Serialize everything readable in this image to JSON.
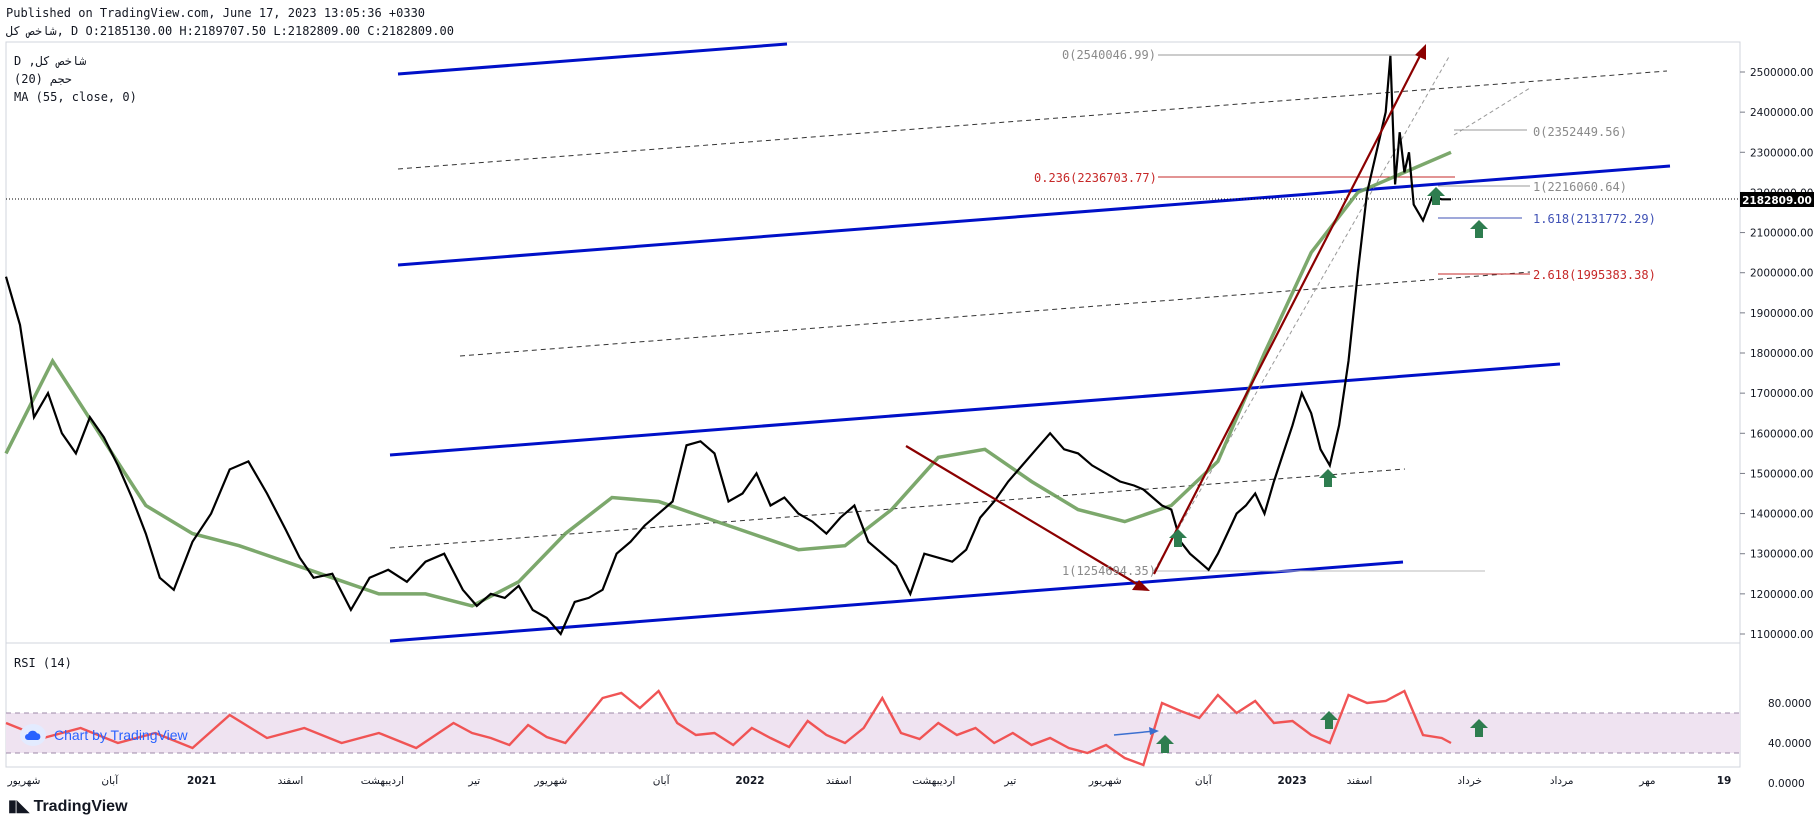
{
  "header": {
    "published": "Published on TradingView.com, June 17, 2023 13:05:36 +0330",
    "ohlc": "شاخص کل, D O:2185130.00 H:2189707.50 L:2182809.00 C:2182809.00"
  },
  "legend": {
    "symbol": "D ,شاخص کل",
    "volume": "(20) حجم",
    "ma": "MA (55, close, 0)"
  },
  "rsi_legend": "RSI (14)",
  "watermark": "Chart by TradingView",
  "footer_logo": "TradingView",
  "last_price": "2182809.00",
  "colors": {
    "price": "#000000",
    "ma": "#6e9e5c",
    "channel": "#0010c8",
    "arrow": "#8b0000",
    "rsi": "#f05455",
    "rsi_band": "#efe3f1",
    "fib_red": "#c62828",
    "fib_blue": "#3f51b5",
    "fib_gray": "#8a8a8a",
    "up_arrow": "#2e7d4f"
  },
  "chart_data": [
    {
      "type": "line",
      "title": "",
      "y_ticks": [
        "2500000.00",
        "2400000.00",
        "2300000.00",
        "2200000.00",
        "2100000.00",
        "2000000.00",
        "1900000.00",
        "1800000.00",
        "1700000.00",
        "1600000.00",
        "1500000.00",
        "1400000.00",
        "1300000.00",
        "1200000.00",
        "1100000.00"
      ],
      "ylim": [
        1070000,
        2580000
      ],
      "x_labels": [
        "شهریور",
        "آبان",
        "2021",
        "اسفند",
        "اردیبهشت",
        "تیر",
        "شهریور",
        "آبان",
        "2022",
        "اسفند",
        "اردیبهشت",
        "تیر",
        "شهریور",
        "آبان",
        "2023",
        "اسفند",
        "خرداد",
        "مرداد",
        "مهر",
        "19"
      ],
      "series": [
        {
          "x": [
            0,
            3,
            6,
            9,
            12,
            15,
            18,
            21,
            24,
            27,
            30,
            33,
            36,
            40,
            44,
            48,
            52,
            56,
            60,
            63,
            66,
            70,
            74,
            78,
            82,
            86,
            90,
            94,
            98,
            101,
            104,
            107,
            110,
            113,
            116,
            119,
            122,
            125,
            128,
            131,
            134,
            137,
            140,
            143,
            146,
            149,
            152,
            155,
            158,
            161,
            164,
            167,
            170,
            173,
            176,
            179,
            182,
            185,
            188,
            191,
            194,
            197,
            200,
            203,
            206,
            209,
            212,
            215,
            218,
            221,
            224,
            227,
            230,
            233,
            236,
            239,
            242,
            244,
            246,
            248,
            250,
            252,
            254,
            256,
            258,
            260,
            262,
            264,
            266,
            268,
            270,
            272,
            274,
            276,
            278,
            280,
            282,
            284,
            286,
            288,
            290,
            292,
            294,
            296,
            297,
            298,
            299,
            300,
            301,
            302,
            304,
            306,
            308,
            310
          ],
          "values": [
            1990000,
            1870000,
            1640000,
            1700000,
            1600000,
            1550000,
            1640000,
            1590000,
            1520000,
            1440000,
            1350000,
            1240000,
            1210000,
            1330000,
            1400000,
            1510000,
            1530000,
            1450000,
            1360000,
            1290000,
            1240000,
            1250000,
            1160000,
            1240000,
            1260000,
            1230000,
            1280000,
            1300000,
            1210000,
            1170000,
            1200000,
            1190000,
            1220000,
            1160000,
            1140000,
            1100000,
            1180000,
            1190000,
            1210000,
            1300000,
            1330000,
            1370000,
            1400000,
            1430000,
            1570000,
            1580000,
            1550000,
            1430000,
            1450000,
            1500000,
            1420000,
            1440000,
            1400000,
            1380000,
            1350000,
            1390000,
            1420000,
            1330000,
            1300000,
            1270000,
            1200000,
            1300000,
            1290000,
            1280000,
            1310000,
            1390000,
            1430000,
            1480000,
            1520000,
            1560000,
            1600000,
            1560000,
            1550000,
            1520000,
            1500000,
            1480000,
            1470000,
            1460000,
            1440000,
            1420000,
            1410000,
            1330000,
            1300000,
            1280000,
            1260000,
            1300000,
            1350000,
            1400000,
            1420000,
            1450000,
            1400000,
            1480000,
            1550000,
            1620000,
            1700000,
            1650000,
            1560000,
            1520000,
            1620000,
            1780000,
            2000000,
            2200000,
            2300000,
            2400000,
            2540000,
            2220000,
            2350000,
            2250000,
            2300000,
            2170000,
            2130000,
            2190000,
            2183000,
            2183000
          ],
          "name": ""
        },
        {
          "x": [
            0,
            10,
            20,
            30,
            40,
            50,
            60,
            70,
            80,
            90,
            100,
            110,
            120,
            130,
            140,
            150,
            160,
            170,
            180,
            190,
            200,
            210,
            220,
            230,
            240,
            250,
            260,
            270,
            280,
            290,
            300,
            310
          ],
          "values": [
            1550000,
            1780000,
            1600000,
            1420000,
            1350000,
            1320000,
            1280000,
            1240000,
            1200000,
            1200000,
            1170000,
            1230000,
            1350000,
            1440000,
            1430000,
            1390000,
            1350000,
            1310000,
            1320000,
            1410000,
            1540000,
            1560000,
            1480000,
            1410000,
            1380000,
            1420000,
            1530000,
            1800000,
            2050000,
            2200000,
            2250000,
            2300000
          ],
          "name": ""
        }
      ]
    },
    {
      "type": "line",
      "title": "",
      "y_ticks": [
        "80.0000",
        "40.0000",
        "0.0000"
      ],
      "ylim": [
        -10,
        100
      ],
      "series": [
        {
          "x": [
            0,
            8,
            16,
            24,
            32,
            40,
            48,
            56,
            64,
            72,
            80,
            88,
            96,
            100,
            104,
            108,
            112,
            116,
            120,
            124,
            128,
            132,
            136,
            140,
            144,
            148,
            152,
            156,
            160,
            164,
            168,
            172,
            176,
            180,
            184,
            188,
            192,
            196,
            200,
            204,
            208,
            212,
            216,
            220,
            224,
            228,
            232,
            236,
            240,
            244,
            248,
            252,
            256,
            260,
            264,
            268,
            272,
            276,
            280,
            284,
            288,
            292,
            296,
            300,
            304,
            308,
            310
          ],
          "values": [
            60,
            45,
            55,
            40,
            50,
            35,
            68,
            45,
            55,
            40,
            50,
            35,
            60,
            50,
            45,
            38,
            58,
            46,
            40,
            62,
            85,
            90,
            75,
            92,
            60,
            48,
            50,
            38,
            55,
            45,
            36,
            62,
            48,
            40,
            55,
            85,
            50,
            44,
            60,
            48,
            55,
            40,
            50,
            38,
            45,
            35,
            30,
            38,
            25,
            18,
            80,
            72,
            65,
            88,
            70,
            82,
            60,
            62,
            48,
            40,
            88,
            80,
            82,
            92,
            48,
            45,
            40
          ],
          "name": ""
        }
      ],
      "bands": [
        70,
        30
      ]
    }
  ],
  "annotations": {
    "fib_levels": [
      {
        "text": "0(2540046.99)",
        "color": "gray"
      },
      {
        "text": "0(2352449.56)",
        "color": "gray"
      },
      {
        "text": "0.236(2236703.77)",
        "color": "red"
      },
      {
        "text": "1(2216060.64)",
        "color": "gray"
      },
      {
        "text": "1.618(2131772.29)",
        "color": "blue"
      },
      {
        "text": "2.618(1995383.38)",
        "color": "red"
      },
      {
        "text": "1(1254694.35)",
        "color": "gray"
      }
    ]
  }
}
